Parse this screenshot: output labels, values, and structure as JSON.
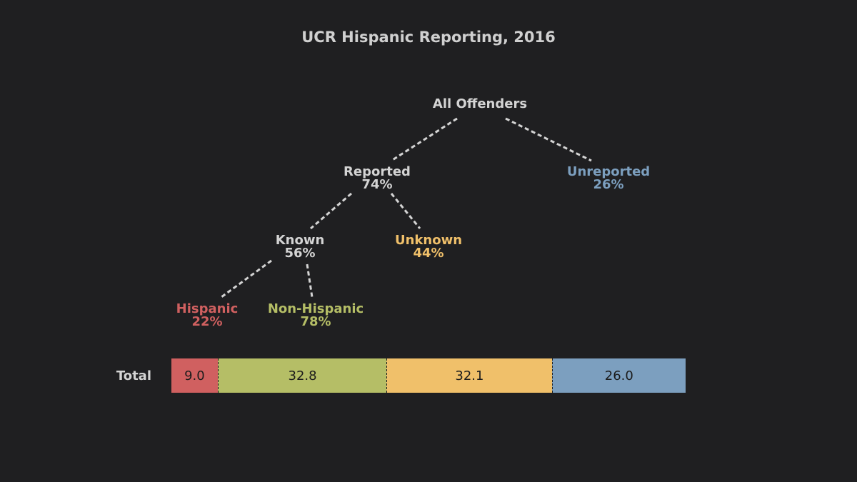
{
  "chart_data": {
    "type": "tree-stacked-bar",
    "title": "UCR Hispanic Reporting, 2016",
    "tree": {
      "root": "All Offenders",
      "level1": [
        {
          "label": "Reported",
          "value": "74%",
          "color": "#d4d4d4"
        },
        {
          "label": "Unreported",
          "value": "26%",
          "color": "#7c9fbf"
        }
      ],
      "level2": [
        {
          "label": "Known",
          "value": "56%",
          "color": "#d4d4d4"
        },
        {
          "label": "Unknown",
          "value": "44%",
          "color": "#f0c06a"
        }
      ],
      "level3": [
        {
          "label": "Hispanic",
          "value": "22%",
          "color": "#d06060"
        },
        {
          "label": "Non-Hispanic",
          "value": "78%",
          "color": "#b5be66"
        }
      ]
    },
    "bar": {
      "row_label": "Total",
      "segments": [
        {
          "name": "Hispanic",
          "value": 9.0,
          "label": "9.0",
          "color": "#d06060"
        },
        {
          "name": "Non-Hispanic",
          "value": 32.8,
          "label": "32.8",
          "color": "#b5be66"
        },
        {
          "name": "Unknown",
          "value": 32.1,
          "label": "32.1",
          "color": "#f0c06a"
        },
        {
          "name": "Unreported",
          "value": 26.0,
          "label": "26.0",
          "color": "#7c9fbf"
        }
      ],
      "total": 99.9
    }
  }
}
